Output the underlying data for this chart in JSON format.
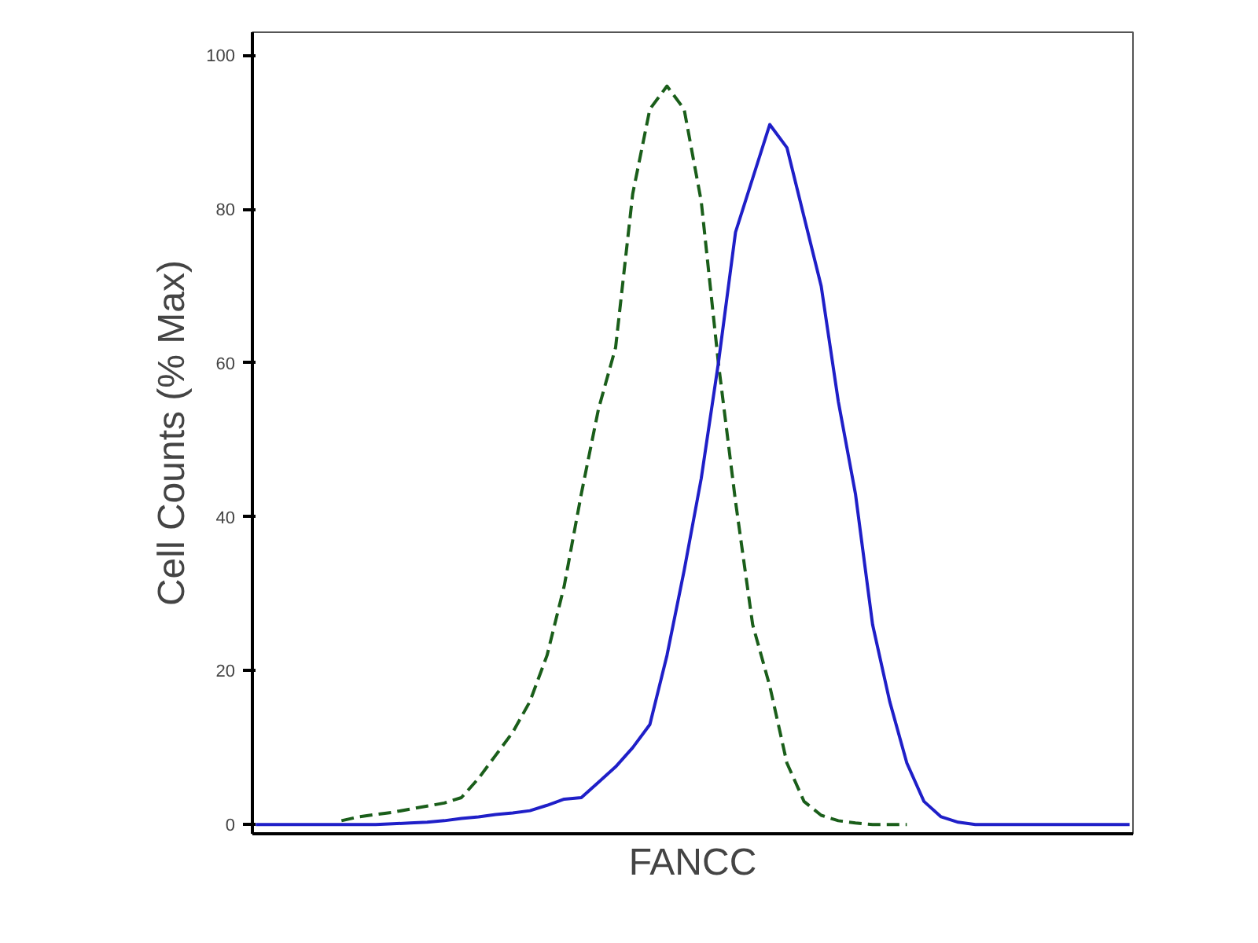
{
  "chart_data": {
    "type": "line",
    "xlabel": "FANCC",
    "ylabel": "Cell Counts (% Max)",
    "categories": [
      null,
      null,
      null,
      null,
      null,
      null,
      null,
      null,
      null,
      null,
      null,
      null,
      null,
      null,
      null,
      null,
      null,
      null,
      null,
      null,
      null,
      null,
      null,
      null,
      null,
      null,
      null,
      null,
      null,
      null,
      null,
      null,
      null,
      null,
      null,
      null,
      null,
      null,
      null,
      null,
      null,
      null,
      null,
      null,
      null,
      null,
      null,
      null,
      null,
      null,
      null,
      null
    ],
    "series": [
      {
        "color": "#1a5e1a",
        "line_style": "dashed",
        "values": [
          null,
          null,
          null,
          null,
          null,
          0.5,
          1,
          1.3,
          1.6,
          2,
          2.4,
          2.8,
          3.5,
          6,
          9,
          12,
          16,
          22,
          31,
          43,
          54,
          62,
          82,
          93,
          96,
          93,
          81,
          60,
          42,
          26,
          18,
          8,
          3,
          1.2,
          0.5,
          0.2,
          0,
          0,
          0,
          null,
          null,
          null,
          null,
          null,
          null,
          null,
          null,
          null,
          null,
          null,
          null,
          null
        ]
      },
      {
        "color": "#1f1fc8",
        "line_style": "solid",
        "values": [
          0,
          0,
          0,
          0,
          0,
          0,
          0,
          0,
          0.1,
          0.2,
          0.3,
          0.5,
          0.8,
          1,
          1.3,
          1.5,
          1.8,
          2.5,
          3.3,
          3.5,
          5.5,
          7.5,
          10,
          13,
          22,
          33,
          45,
          60,
          77,
          84,
          91,
          88,
          79,
          70,
          55,
          43,
          26,
          16,
          8,
          3,
          1,
          0.3,
          0,
          0,
          0,
          0,
          0,
          0,
          0,
          0,
          0,
          0
        ]
      }
    ],
    "ylim": [
      -1.2,
      103
    ],
    "yticks": [
      0,
      20,
      40,
      60,
      80,
      100
    ],
    "grid": false,
    "tick_labels": "y",
    "marker": "none"
  }
}
